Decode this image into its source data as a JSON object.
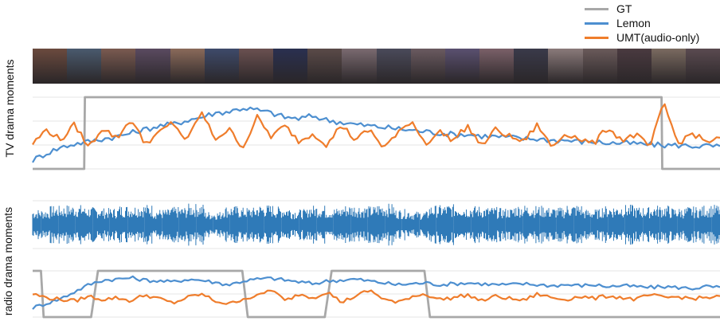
{
  "legend": [
    {
      "label": "GT",
      "color": "#a8a8a8"
    },
    {
      "label": "Lemon",
      "color": "#4d8fd0"
    },
    {
      "label": "UMT(audio-only)",
      "color": "#ef7d2c"
    }
  ],
  "panels": {
    "tv_label": "TV drama moments",
    "radio_label": "radio drama moments"
  },
  "thumb_colors": [
    "#6b4a3e",
    "#4a5a6e",
    "#7a5a50",
    "#5a4a60",
    "#8a6a5a",
    "#3e4a6a",
    "#6a5050",
    "#2a3050",
    "#5a4a48",
    "#7a6a70",
    "#4a4a5a",
    "#6a5a60",
    "#5a5070",
    "#7a6068",
    "#3a3a4a",
    "#8a7a7a",
    "#6a5a5a",
    "#4a3a40",
    "#7a6a60",
    "#5a4a50"
  ],
  "chart_data": [
    {
      "type": "line",
      "name": "tv",
      "x_range": [
        0,
        100
      ],
      "series": [
        {
          "name": "GT",
          "color": "#a8a8a8",
          "values": [
            [
              0,
              0
            ],
            [
              7.5,
              0
            ],
            [
              7.6,
              1
            ],
            [
              91.5,
              1
            ],
            [
              91.6,
              0
            ],
            [
              100,
              0
            ]
          ]
        },
        {
          "name": "Lemon",
          "color": "#4d8fd0",
          "values": [
            0.12,
            0.22,
            0.3,
            0.35,
            0.38,
            0.42,
            0.45,
            0.5,
            0.55,
            0.6,
            0.62,
            0.68,
            0.72,
            0.78,
            0.8,
            0.85,
            0.82,
            0.78,
            0.72,
            0.7,
            0.74,
            0.68,
            0.65,
            0.62,
            0.6,
            0.58,
            0.56,
            0.54,
            0.52,
            0.5,
            0.48,
            0.48,
            0.46,
            0.45,
            0.44,
            0.42,
            0.42,
            0.4,
            0.4,
            0.38,
            0.38,
            0.36,
            0.36,
            0.35,
            0.34,
            0.33,
            0.33,
            0.32,
            0.32,
            0.31
          ]
        },
        {
          "name": "UMT(audio-only)",
          "color": "#ef7d2c",
          "values": [
            0.35,
            0.55,
            0.4,
            0.62,
            0.3,
            0.58,
            0.42,
            0.7,
            0.35,
            0.5,
            0.65,
            0.38,
            0.8,
            0.42,
            0.55,
            0.3,
            0.72,
            0.45,
            0.6,
            0.38,
            0.5,
            0.33,
            0.62,
            0.4,
            0.55,
            0.3,
            0.48,
            0.68,
            0.35,
            0.52,
            0.4,
            0.6,
            0.32,
            0.55,
            0.45,
            0.38,
            0.62,
            0.3,
            0.5,
            0.42,
            0.35,
            0.58,
            0.4,
            0.48,
            0.3,
            0.92,
            0.35,
            0.5,
            0.38,
            0.42
          ]
        }
      ]
    },
    {
      "type": "line",
      "name": "radio",
      "x_range": [
        0,
        100
      ],
      "series": [
        {
          "name": "GT",
          "color": "#a8a8a8",
          "values": [
            [
              0,
              1
            ],
            [
              1.2,
              1
            ],
            [
              1.6,
              0
            ],
            [
              8.5,
              0
            ],
            [
              9.5,
              1
            ],
            [
              30.5,
              1
            ],
            [
              31.3,
              0
            ],
            [
              42.5,
              0
            ],
            [
              43.5,
              1
            ],
            [
              57,
              1
            ],
            [
              57.8,
              0
            ],
            [
              100,
              0
            ]
          ]
        },
        {
          "name": "Lemon",
          "color": "#4d8fd0",
          "values": [
            0.2,
            0.3,
            0.4,
            0.55,
            0.7,
            0.8,
            0.82,
            0.85,
            0.8,
            0.78,
            0.76,
            0.82,
            0.8,
            0.75,
            0.7,
            0.78,
            0.82,
            0.84,
            0.8,
            0.76,
            0.72,
            0.78,
            0.8,
            0.82,
            0.78,
            0.74,
            0.7,
            0.72,
            0.74,
            0.7,
            0.72,
            0.74,
            0.72,
            0.7,
            0.7,
            0.72,
            0.7,
            0.68,
            0.7,
            0.68,
            0.7,
            0.66,
            0.68,
            0.66,
            0.64,
            0.66,
            0.64,
            0.62,
            0.66,
            0.64
          ]
        },
        {
          "name": "UMT(audio-only)",
          "color": "#ef7d2c",
          "values": [
            0.5,
            0.42,
            0.38,
            0.35,
            0.45,
            0.38,
            0.42,
            0.35,
            0.48,
            0.4,
            0.3,
            0.42,
            0.5,
            0.35,
            0.28,
            0.4,
            0.45,
            0.6,
            0.35,
            0.5,
            0.42,
            0.55,
            0.32,
            0.45,
            0.58,
            0.4,
            0.3,
            0.45,
            0.5,
            0.38,
            0.42,
            0.48,
            0.35,
            0.45,
            0.4,
            0.36,
            0.5,
            0.42,
            0.38,
            0.45,
            0.4,
            0.46,
            0.42,
            0.38,
            0.48,
            0.42,
            0.44,
            0.4,
            0.42,
            0.44
          ]
        }
      ]
    },
    {
      "type": "area",
      "name": "waveform",
      "series": [
        {
          "name": "",
          "color": "#2f7ab8",
          "values": [
            0.7,
            0.85,
            0.9,
            0.8,
            0.75,
            0.88,
            0.92,
            0.7,
            0.8,
            0.95,
            0.6,
            0.85,
            0.78,
            0.9,
            0.82,
            0.7,
            0.88,
            0.76,
            0.9,
            0.84,
            0.95,
            0.7,
            0.6,
            0.88,
            0.92,
            0.85,
            0.8,
            0.75,
            0.9,
            0.86,
            0.78,
            0.92,
            0.7,
            0.85,
            0.9,
            0.8,
            0.88,
            0.76,
            0.82,
            0.9
          ]
        }
      ]
    }
  ]
}
